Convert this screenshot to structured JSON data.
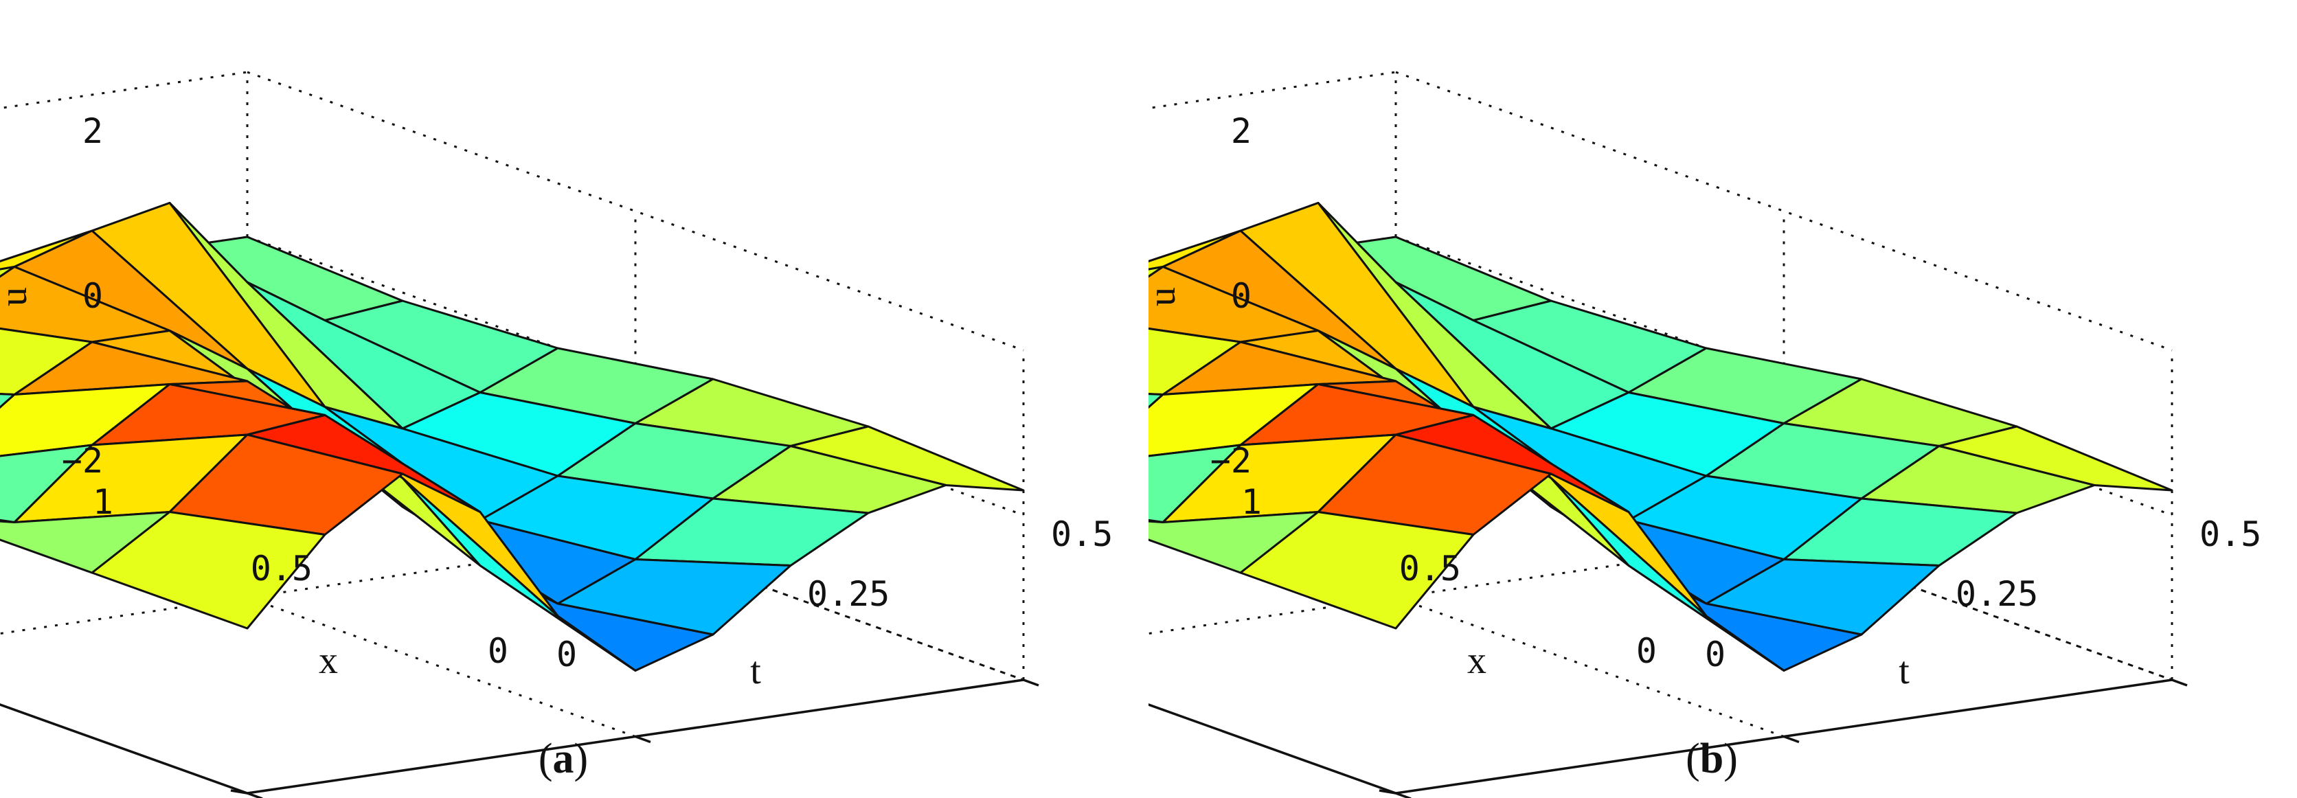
{
  "chart_data": [
    {
      "type": "surface",
      "caption_open": "(",
      "caption_letter": "a",
      "caption_close": ")",
      "xlabel": "t",
      "ylabel": "x",
      "zlabel": "u",
      "t_ticks": [
        "0",
        "0.25",
        "0.5"
      ],
      "x_ticks": [
        "0",
        "0.5",
        "1"
      ],
      "z_ticks": [
        "−2",
        "0",
        "2"
      ],
      "t_range": [
        0,
        0.5
      ],
      "x_range": [
        0,
        1
      ],
      "z_range": [
        -2,
        2
      ],
      "grid": true,
      "colormap": "jet",
      "t": [
        0,
        0.05,
        0.1,
        0.15,
        0.2,
        0.25,
        0.3,
        0.35,
        0.4,
        0.45,
        0.5
      ],
      "x": [
        0,
        0.2,
        0.4,
        0.6,
        0.8,
        1.0
      ],
      "u": [
        [
          0.0,
          0.0,
          0.0,
          0.0,
          0.0,
          0.0
        ],
        [
          1.0,
          0.6,
          -0.2,
          -0.6,
          -0.4,
          0.0
        ],
        [
          1.6,
          1.4,
          0.6,
          -0.3,
          -0.6,
          0.0
        ],
        [
          1.0,
          1.5,
          1.2,
          0.4,
          -0.2,
          0.0
        ],
        [
          -0.4,
          0.6,
          1.1,
          0.9,
          0.5,
          0.0
        ],
        [
          -1.2,
          -0.6,
          0.2,
          0.9,
          1.0,
          0.0
        ],
        [
          -0.9,
          -1.2,
          -0.7,
          0.3,
          1.3,
          0.0
        ],
        [
          -0.2,
          -0.8,
          -1.0,
          -0.3,
          1.5,
          0.0
        ],
        [
          0.3,
          -0.2,
          -0.6,
          -0.7,
          0.4,
          0.0
        ],
        [
          0.5,
          0.3,
          -0.1,
          -0.4,
          -0.2,
          0.0
        ],
        [
          0.3,
          0.4,
          0.3,
          0.0,
          -0.1,
          0.0
        ]
      ]
    },
    {
      "type": "surface",
      "caption_open": "(",
      "caption_letter": "b",
      "caption_close": ")",
      "xlabel": "t",
      "ylabel": "x",
      "zlabel": "u",
      "t_ticks": [
        "0",
        "0.25",
        "0.5"
      ],
      "x_ticks": [
        "0",
        "0.5",
        "1"
      ],
      "z_ticks": [
        "−2",
        "0",
        "2"
      ],
      "t_range": [
        0,
        0.5
      ],
      "x_range": [
        0,
        1
      ],
      "z_range": [
        -2,
        2
      ],
      "grid": true,
      "colormap": "jet",
      "t": [
        0,
        0.05,
        0.1,
        0.15,
        0.2,
        0.25,
        0.3,
        0.35,
        0.4,
        0.45,
        0.5
      ],
      "x": [
        0,
        0.2,
        0.4,
        0.6,
        0.8,
        1.0
      ],
      "u": [
        [
          0.0,
          0.0,
          0.0,
          0.0,
          0.0,
          0.0
        ],
        [
          1.0,
          0.6,
          -0.2,
          -0.6,
          -0.4,
          0.0
        ],
        [
          1.6,
          1.4,
          0.6,
          -0.3,
          -0.6,
          0.0
        ],
        [
          1.0,
          1.5,
          1.2,
          0.4,
          -0.2,
          0.0
        ],
        [
          -0.4,
          0.6,
          1.1,
          0.9,
          0.5,
          0.0
        ],
        [
          -1.2,
          -0.6,
          0.2,
          0.9,
          1.0,
          0.0
        ],
        [
          -0.9,
          -1.2,
          -0.7,
          0.3,
          1.3,
          0.0
        ],
        [
          -0.2,
          -0.8,
          -1.0,
          -0.3,
          1.5,
          0.0
        ],
        [
          0.3,
          -0.2,
          -0.6,
          -0.7,
          0.4,
          0.0
        ],
        [
          0.5,
          0.3,
          -0.1,
          -0.4,
          -0.2,
          0.0
        ],
        [
          0.3,
          0.4,
          0.3,
          0.0,
          -0.1,
          0.0
        ]
      ]
    }
  ]
}
